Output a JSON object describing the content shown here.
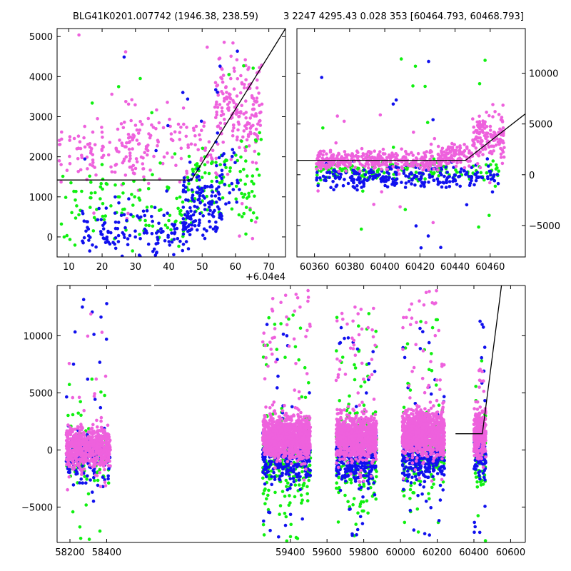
{
  "title_left": "BLG41K0201.007742 (1946.38, 238.59)",
  "title_right": "3 2247 4295.43 0.028 353 [60464.793, 60468.793]",
  "colors": {
    "pink": "#ee61dd",
    "blue": "#1010ee",
    "green": "#10f010",
    "model": "#000000"
  },
  "chart_data": [
    {
      "id": "zoom",
      "type": "scatter",
      "x_offset_label": "+6.04e4",
      "xlim": [
        6.5,
        75
      ],
      "ylim": [
        -500,
        5200
      ],
      "xticks": [
        10,
        20,
        30,
        40,
        50,
        60,
        70
      ],
      "yticks": [
        0,
        1000,
        2000,
        3000,
        4000,
        5000
      ],
      "yaxis_side": "left",
      "series": [
        {
          "color": "pink",
          "clusters": [
            {
              "x": [
                7,
                34
              ],
              "y": [
                1450,
                2700
              ],
              "n": 120,
              "out": 0.12,
              "orange": [
                -100,
                5200
              ]
            },
            {
              "x": [
                25,
                45
              ],
              "y": [
                1800,
                3200
              ],
              "n": 60,
              "out": 0.1,
              "orange": [
                -100,
                5200
              ]
            },
            {
              "x": [
                45,
                55
              ],
              "y": [
                1700,
                2900
              ],
              "n": 40,
              "out": 0.1,
              "orange": [
                -100,
                5200
              ]
            },
            {
              "x": [
                54,
                68
              ],
              "y": [
                2300,
                4200
              ],
              "n": 180,
              "out": 0.1,
              "orange": [
                -100,
                5200
              ]
            }
          ]
        },
        {
          "color": "green",
          "clusters": [
            {
              "x": [
                7,
                45
              ],
              "y": [
                -200,
                1500
              ],
              "n": 110,
              "out": 0.1,
              "orange": [
                -500,
                5200
              ]
            },
            {
              "x": [
                45,
                68
              ],
              "y": [
                400,
                2300
              ],
              "n": 110,
              "out": 0.1,
              "orange": [
                -500,
                5200
              ]
            }
          ]
        },
        {
          "color": "blue",
          "clusters": [
            {
              "x": [
                14,
                46
              ],
              "y": [
                -400,
                700
              ],
              "n": 140,
              "out": 0.05,
              "orange": [
                -500,
                5200
              ]
            },
            {
              "x": [
                44,
                56
              ],
              "y": [
                0,
                1500
              ],
              "n": 130,
              "out": 0.05,
              "orange": [
                -500,
                5200
              ]
            },
            {
              "x": [
                54,
                62
              ],
              "y": [
                600,
                2300
              ],
              "n": 30,
              "out": 0.1,
              "orange": [
                -500,
                5200
              ]
            }
          ]
        }
      ],
      "model": {
        "x": [
          6.5,
          46.8,
          75
        ],
        "y": [
          1420,
          1420,
          5200
        ]
      }
    },
    {
      "id": "recent",
      "type": "scatter",
      "xlim": [
        60350,
        60480
      ],
      "ylim": [
        -8100,
        14400
      ],
      "xticks": [
        60360,
        60380,
        60400,
        60420,
        60440,
        60460
      ],
      "yticks": [
        -5000,
        0,
        5000,
        10000
      ],
      "yaxis_side": "right",
      "series": [
        {
          "color": "green",
          "clusters": [
            {
              "x": [
                60361,
                60465
              ],
              "y": [
                -500,
                1200
              ],
              "n": 170,
              "out": 0.08,
              "orange": [
                -7500,
                12000
              ]
            }
          ]
        },
        {
          "color": "blue",
          "clusters": [
            {
              "x": [
                60361,
                60465
              ],
              "y": [
                -1200,
                800
              ],
              "n": 260,
              "out": 0.07,
              "orange": [
                -7500,
                12000
              ]
            }
          ]
        },
        {
          "color": "pink",
          "clusters": [
            {
              "x": [
                60361,
                60432
              ],
              "y": [
                600,
                2300
              ],
              "n": 340,
              "out": 0.03,
              "orange": [
                -5000,
                7000
              ]
            },
            {
              "x": [
                60432,
                60450
              ],
              "y": [
                1000,
                3000
              ],
              "n": 90,
              "out": 0.05,
              "orange": [
                -5000,
                7000
              ]
            },
            {
              "x": [
                60450,
                60468
              ],
              "y": [
                1800,
                5800
              ],
              "n": 140,
              "out": 0.05,
              "orange": [
                -5000,
                7000
              ]
            }
          ]
        }
      ],
      "model": {
        "x": [
          60350,
          60446,
          60480
        ],
        "y": [
          1420,
          1420,
          6000
        ]
      }
    },
    {
      "id": "full",
      "type": "scatter",
      "xlim": [
        58130,
        60680
      ],
      "ylim": [
        -8100,
        14400
      ],
      "xticks": [
        58200,
        58400,
        59400,
        59600,
        59800,
        60000,
        60200,
        60400,
        60600
      ],
      "yticks": [
        -5000,
        0,
        5000,
        10000
      ],
      "yaxis_side": "left",
      "series": [
        {
          "color": "green",
          "clusters": [
            {
              "x": [
                58180,
                58420
              ],
              "y": [
                -3000,
                2500
              ],
              "n": 110,
              "out": 0.15,
              "orange": [
                -8000,
                9000
              ]
            },
            {
              "x": [
                59250,
                59510
              ],
              "y": [
                -4000,
                2500
              ],
              "n": 260,
              "out": 0.15,
              "orange": [
                -8000,
                12000
              ]
            },
            {
              "x": [
                59650,
                59870
              ],
              "y": [
                -3500,
                3000
              ],
              "n": 230,
              "out": 0.15,
              "orange": [
                -8000,
                12000
              ]
            },
            {
              "x": [
                60010,
                60240
              ],
              "y": [
                -3000,
                3000
              ],
              "n": 220,
              "out": 0.15,
              "orange": [
                -8000,
                12000
              ]
            },
            {
              "x": [
                60400,
                60465
              ],
              "y": [
                -2500,
                3000
              ],
              "n": 80,
              "out": 0.15,
              "orange": [
                -8000,
                8000
              ]
            }
          ]
        },
        {
          "color": "blue",
          "clusters": [
            {
              "x": [
                58180,
                58420
              ],
              "y": [
                -2500,
                1500
              ],
              "n": 180,
              "out": 0.1,
              "orange": [
                -8000,
                14000
              ]
            },
            {
              "x": [
                59250,
                59510
              ],
              "y": [
                -2500,
                1500
              ],
              "n": 320,
              "out": 0.1,
              "orange": [
                -8000,
                11000
              ]
            },
            {
              "x": [
                59650,
                59870
              ],
              "y": [
                -2500,
                1500
              ],
              "n": 320,
              "out": 0.1,
              "orange": [
                -8000,
                11000
              ]
            },
            {
              "x": [
                60010,
                60240
              ],
              "y": [
                -2500,
                1500
              ],
              "n": 320,
              "out": 0.1,
              "orange": [
                -8000,
                11000
              ]
            },
            {
              "x": [
                60400,
                60465
              ],
              "y": [
                -2000,
                1500
              ],
              "n": 110,
              "out": 0.1,
              "orange": [
                -8000,
                11500
              ]
            }
          ]
        },
        {
          "color": "pink",
          "clusters": [
            {
              "x": [
                58180,
                58420
              ],
              "y": [
                -1300,
                1800
              ],
              "n": 650,
              "out": 0.05,
              "orange": [
                -3500,
                13000
              ]
            },
            {
              "x": [
                59250,
                59510
              ],
              "y": [
                -400,
                2700
              ],
              "n": 1100,
              "out": 0.05,
              "orange": [
                -3000,
                14000
              ]
            },
            {
              "x": [
                59650,
                59870
              ],
              "y": [
                -400,
                2700
              ],
              "n": 1000,
              "out": 0.06,
              "orange": [
                -3000,
                13000
              ]
            },
            {
              "x": [
                60010,
                60240
              ],
              "y": [
                -200,
                3200
              ],
              "n": 1000,
              "out": 0.06,
              "orange": [
                -3000,
                14000
              ]
            },
            {
              "x": [
                60400,
                60465
              ],
              "y": [
                -200,
                3200
              ],
              "n": 280,
              "out": 0.05,
              "orange": [
                -3000,
                9000
              ]
            }
          ]
        }
      ],
      "model": {
        "x": [
          60300,
          60446,
          60550
        ],
        "y": [
          1420,
          1420,
          14400
        ]
      }
    }
  ]
}
